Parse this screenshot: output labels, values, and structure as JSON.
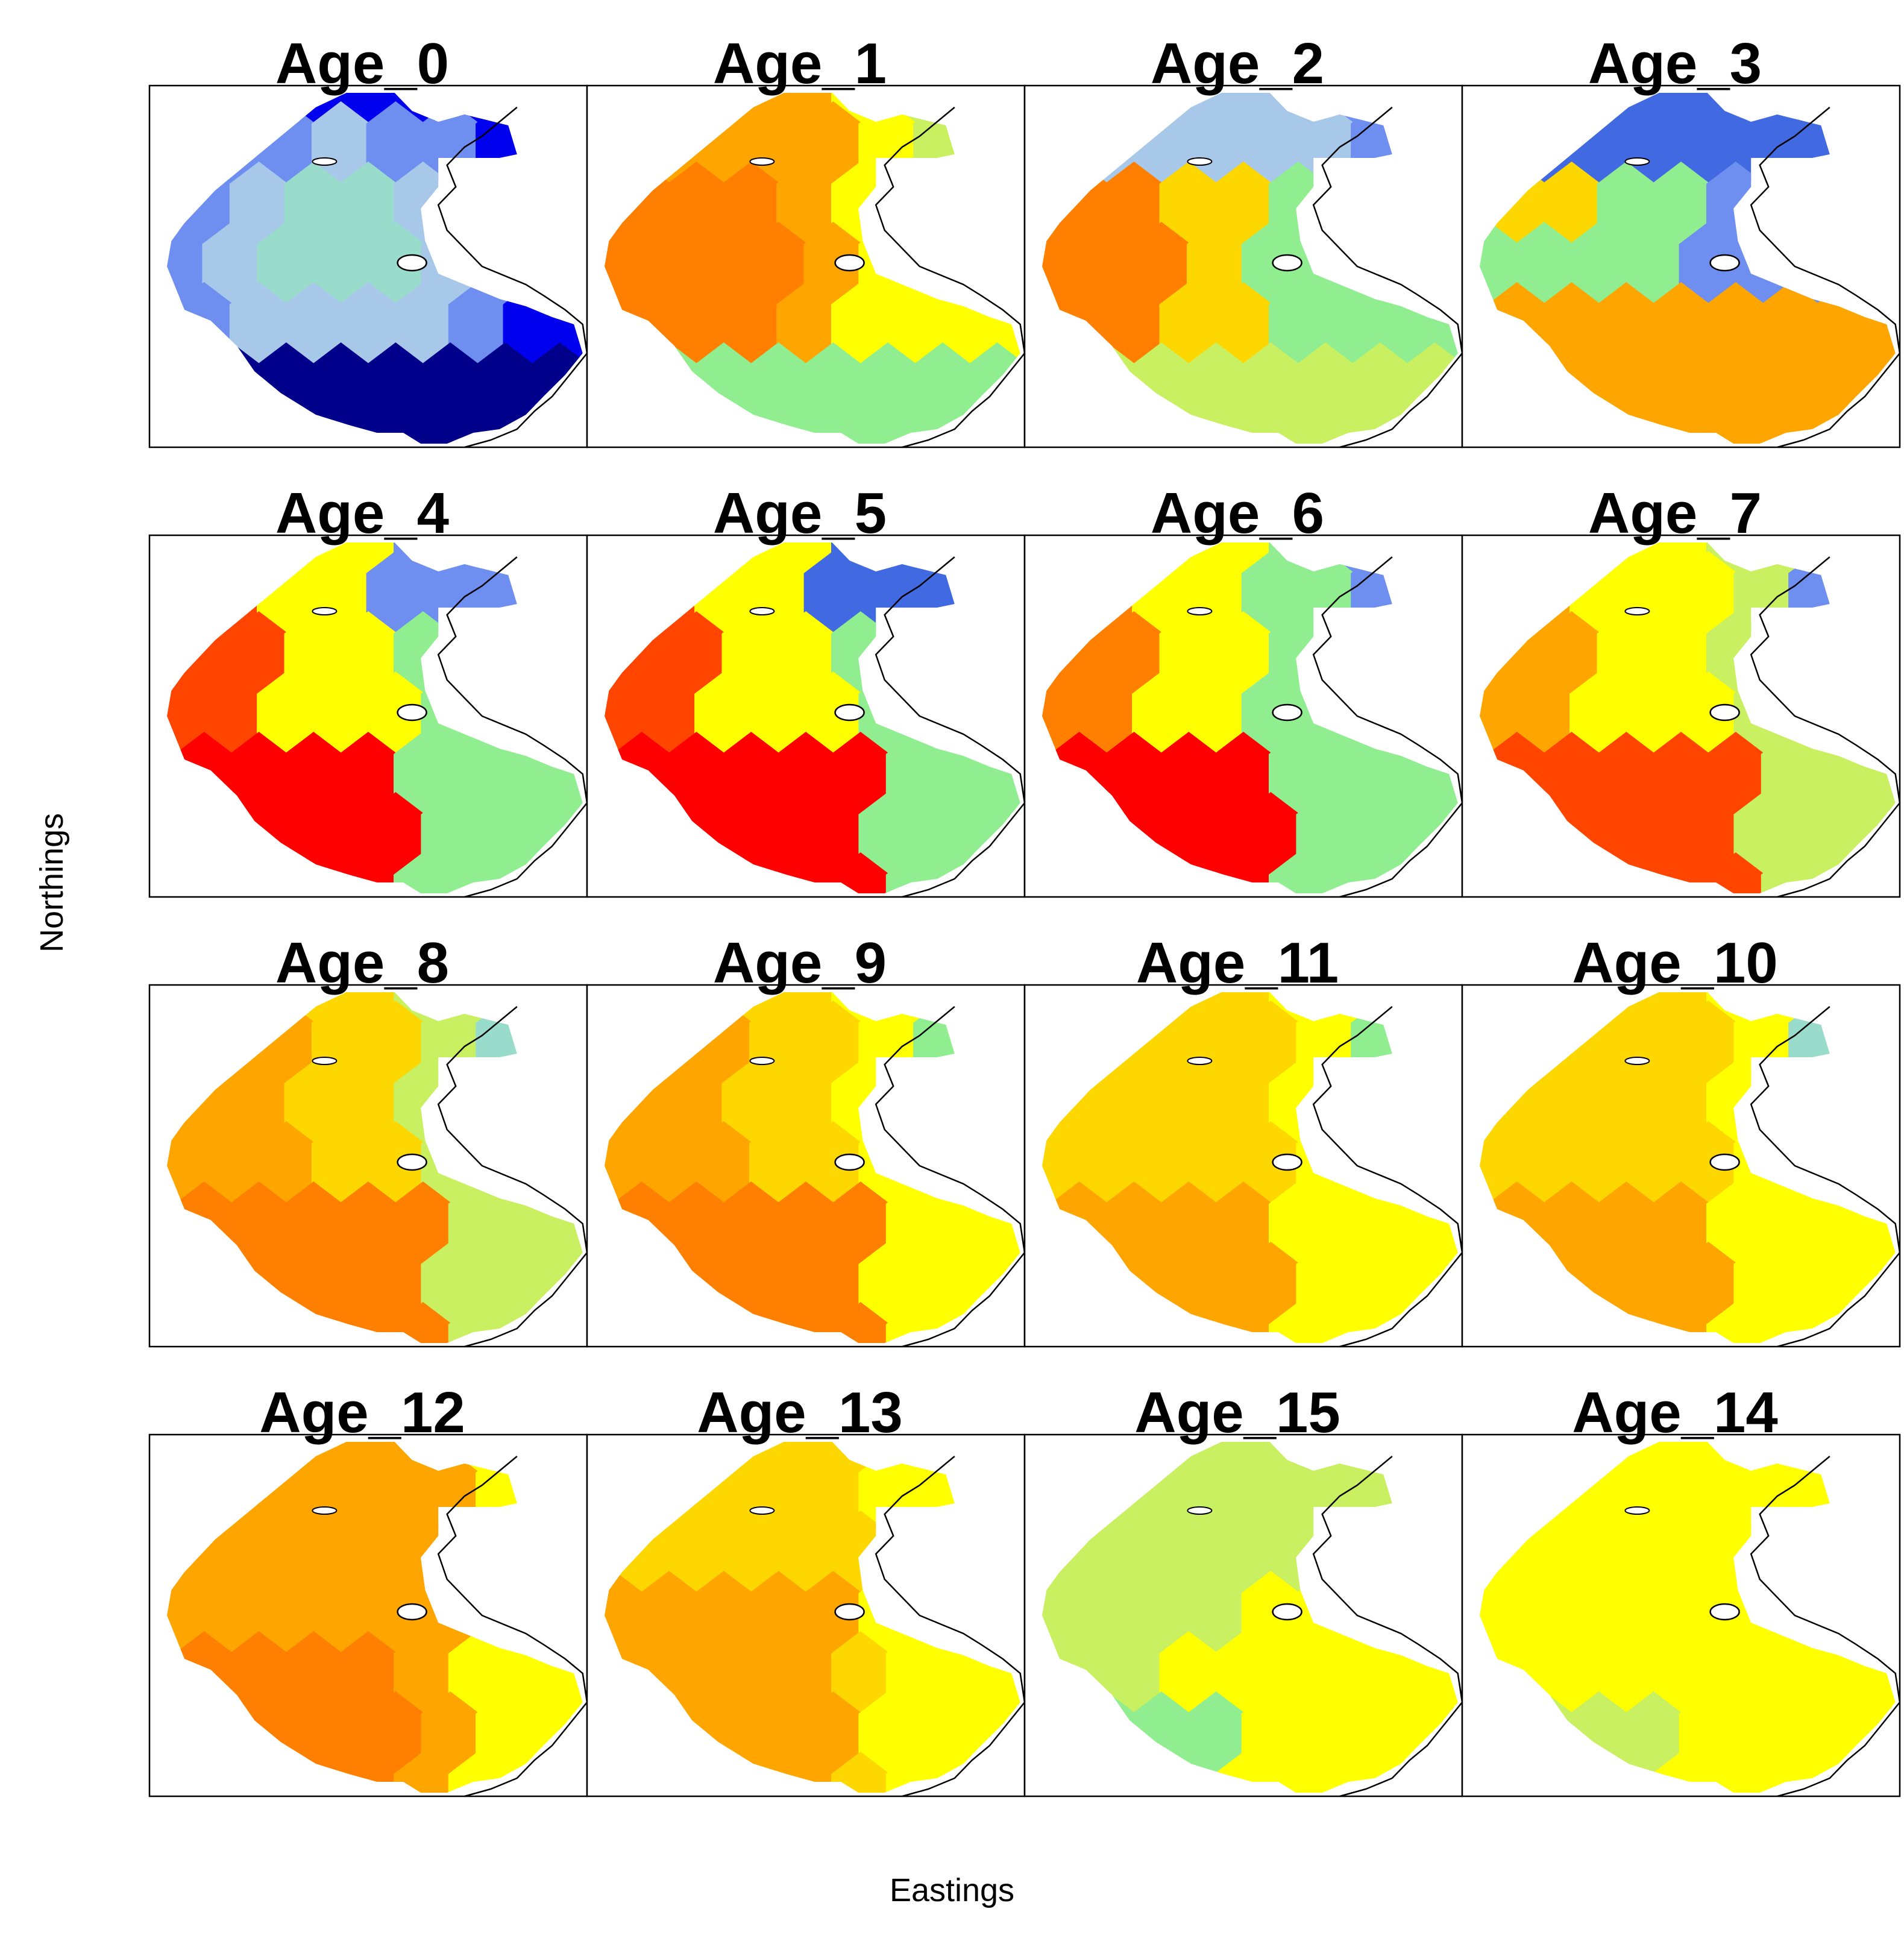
{
  "figure": {
    "xlabel": "Eastings",
    "ylabel": "Northings",
    "panel_titles": [
      "Age_0",
      "Age_1",
      "Age_2",
      "Age_3",
      "Age_4",
      "Age_5",
      "Age_6",
      "Age_7",
      "Age_8",
      "Age_9",
      "Age_11",
      "Age_10",
      "Age_12",
      "Age_13",
      "Age_15",
      "Age_14"
    ]
  },
  "map_data": {
    "type": "small-multiple choropleth maps (tessellated polygons)",
    "layout": {
      "rows": 4,
      "columns": 4
    },
    "color_scale": [
      "#00008b",
      "#0000ee",
      "#4169e1",
      "#6f8ff0",
      "#a7c8e8",
      "#9adccc",
      "#90ee90",
      "#c8f060",
      "#ffff00",
      "#ffd700",
      "#ffa500",
      "#ff7f00",
      "#ff4500",
      "#ff0000"
    ],
    "panel_level_summaries": {
      "Age_0": "mostly blue, light teal in centre",
      "Age_1": "yellow to orange, green in south",
      "Age_2": "light blue north, orange west",
      "Age_3": "blue north, orange south",
      "Age_4": "red/orange south-west, blue north-east",
      "Age_5": "red south, blue north-east",
      "Age_6": "red south, yellow-green north",
      "Age_7": "orange/red south, yellow north",
      "Age_8": "orange south, yellow north",
      "Age_9": "orange south, yellow north",
      "Age_11": "yellow/orange",
      "Age_10": "yellow/orange",
      "Age_12": "orange",
      "Age_13": "orange/yellow",
      "Age_15": "yellow-green",
      "Age_14": "yellow"
    }
  }
}
